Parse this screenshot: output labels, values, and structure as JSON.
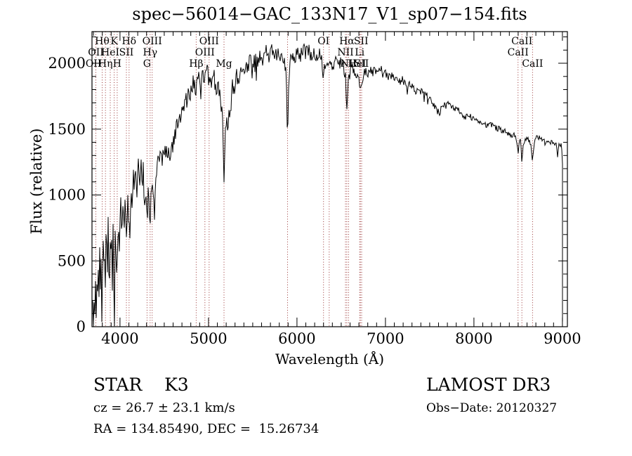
{
  "figure": {
    "title": "spec−56014−GAC_133N17_V1_sp07−154.fits",
    "footer_left": {
      "line1": "STAR    K3",
      "line2": "cz = 26.7 ± 23.1 km/s",
      "line3": "RA = 134.85490, DEC =  15.26734"
    },
    "footer_right": {
      "line1": "LAMOST DR3",
      "line2": "Obs−Date: 20120327"
    }
  },
  "chart_data": {
    "type": "line",
    "title": "spec−56014−GAC_133N17_V1_sp07−154.fits",
    "xlabel": "Wavelength (Å)",
    "ylabel": "Flux (relative)",
    "xlim": [
      3683,
      9056
    ],
    "ylim": [
      0,
      2240
    ],
    "x_ticks": [
      4000,
      5000,
      6000,
      7000,
      8000,
      9000
    ],
    "y_ticks": [
      0,
      500,
      1000,
      1500,
      2000
    ],
    "x_minor_step": 100,
    "y_minor_step": 100,
    "grid": false,
    "legend": "none",
    "line_color": "#000000",
    "series_name": "observed flux",
    "envelope_points": [
      [
        3690,
        20
      ],
      [
        3697,
        180
      ],
      [
        3703,
        60
      ],
      [
        3710,
        340
      ],
      [
        3716,
        90
      ],
      [
        3723,
        420
      ],
      [
        3730,
        150
      ],
      [
        3738,
        470
      ],
      [
        3745,
        220
      ],
      [
        3752,
        520
      ],
      [
        3760,
        180
      ],
      [
        3770,
        560
      ],
      [
        3780,
        300
      ],
      [
        3790,
        620
      ],
      [
        3798,
        260
      ],
      [
        3808,
        660
      ],
      [
        3818,
        380
      ],
      [
        3828,
        700
      ],
      [
        3835,
        280
      ],
      [
        3845,
        720
      ],
      [
        3855,
        480
      ],
      [
        3865,
        750
      ],
      [
        3875,
        420
      ],
      [
        3889,
        600
      ],
      [
        3900,
        780
      ],
      [
        3910,
        520
      ],
      [
        3920,
        820
      ],
      [
        3934,
        300
      ],
      [
        3945,
        760
      ],
      [
        3957,
        560
      ],
      [
        3968,
        420
      ],
      [
        3980,
        860
      ],
      [
        3992,
        640
      ],
      [
        4005,
        920
      ],
      [
        4018,
        720
      ],
      [
        4030,
        980
      ],
      [
        4045,
        800
      ],
      [
        4060,
        1020
      ],
      [
        4072,
        700
      ],
      [
        4085,
        1040
      ],
      [
        4102,
        760
      ],
      [
        4115,
        1080
      ],
      [
        4130,
        920
      ],
      [
        4145,
        1150
      ],
      [
        4160,
        1020
      ],
      [
        4175,
        1180
      ],
      [
        4190,
        1080
      ],
      [
        4205,
        1250
      ],
      [
        4220,
        1120
      ],
      [
        4235,
        1220
      ],
      [
        4250,
        1080
      ],
      [
        4265,
        1150
      ],
      [
        4280,
        980
      ],
      [
        4295,
        1060
      ],
      [
        4305,
        900
      ],
      [
        4320,
        1040
      ],
      [
        4340,
        880
      ],
      [
        4355,
        1000
      ],
      [
        4363,
        950
      ],
      [
        4378,
        1050
      ],
      [
        4395,
        1120
      ],
      [
        4412,
        1180
      ],
      [
        4430,
        1240
      ],
      [
        4450,
        1270
      ],
      [
        4470,
        1280
      ],
      [
        4510,
        1320
      ],
      [
        4555,
        1290
      ],
      [
        4580,
        1350
      ],
      [
        4605,
        1420
      ],
      [
        4630,
        1480
      ],
      [
        4655,
        1530
      ],
      [
        4680,
        1580
      ],
      [
        4705,
        1650
      ],
      [
        4730,
        1700
      ],
      [
        4755,
        1730
      ],
      [
        4780,
        1760
      ],
      [
        4805,
        1800
      ],
      [
        4830,
        1840
      ],
      [
        4861,
        1780
      ],
      [
        4880,
        1880
      ],
      [
        4900,
        1850
      ],
      [
        4920,
        1900
      ],
      [
        4940,
        1870
      ],
      [
        4959,
        1850
      ],
      [
        4980,
        1930
      ],
      [
        5007,
        1870
      ],
      [
        5025,
        1900
      ],
      [
        5045,
        1850
      ],
      [
        5065,
        1880
      ],
      [
        5085,
        1820
      ],
      [
        5105,
        1860
      ],
      [
        5125,
        1780
      ],
      [
        5145,
        1700
      ],
      [
        5160,
        1480
      ],
      [
        5175,
        1080
      ],
      [
        5185,
        1380
      ],
      [
        5200,
        1620
      ],
      [
        5215,
        1420
      ],
      [
        5230,
        1700
      ],
      [
        5250,
        1560
      ],
      [
        5270,
        1820
      ],
      [
        5290,
        1780
      ],
      [
        5310,
        1900
      ],
      [
        5335,
        1850
      ],
      [
        5360,
        1960
      ],
      [
        5385,
        1900
      ],
      [
        5410,
        1990
      ],
      [
        5440,
        1940
      ],
      [
        5470,
        2030
      ],
      [
        5500,
        1970
      ],
      [
        5530,
        2050
      ],
      [
        5560,
        2000
      ],
      [
        5590,
        2070
      ],
      [
        5620,
        2020
      ],
      [
        5650,
        2090
      ],
      [
        5680,
        2040
      ],
      [
        5710,
        2110
      ],
      [
        5740,
        2060
      ],
      [
        5770,
        2100
      ],
      [
        5800,
        2050
      ],
      [
        5830,
        2080
      ],
      [
        5860,
        2020
      ],
      [
        5880,
        1900
      ],
      [
        5893,
        1300
      ],
      [
        5905,
        1850
      ],
      [
        5920,
        2030
      ],
      [
        5950,
        2080
      ],
      [
        5980,
        2030
      ],
      [
        6010,
        2100
      ],
      [
        6040,
        2060
      ],
      [
        6070,
        2110
      ],
      [
        6100,
        2070
      ],
      [
        6130,
        2100
      ],
      [
        6160,
        2050
      ],
      [
        6190,
        2080
      ],
      [
        6220,
        2040
      ],
      [
        6250,
        2070
      ],
      [
        6280,
        2010
      ],
      [
        6300,
        1900
      ],
      [
        6320,
        2020
      ],
      [
        6345,
        1980
      ],
      [
        6364,
        1950
      ],
      [
        6385,
        2020
      ],
      [
        6410,
        1980
      ],
      [
        6440,
        2030
      ],
      [
        6470,
        1980
      ],
      [
        6500,
        2020
      ],
      [
        6530,
        1970
      ],
      [
        6548,
        1900
      ],
      [
        6563,
        1650
      ],
      [
        6578,
        1870
      ],
      [
        6595,
        1950
      ],
      [
        6620,
        1980
      ],
      [
        6650,
        1940
      ],
      [
        6678,
        1890
      ],
      [
        6700,
        1860
      ],
      [
        6716,
        1800
      ],
      [
        6731,
        1820
      ],
      [
        6750,
        1910
      ],
      [
        6775,
        1950
      ],
      [
        6800,
        1920
      ],
      [
        6830,
        1950
      ],
      [
        6860,
        1930
      ],
      [
        6890,
        1950
      ],
      [
        6920,
        1960
      ],
      [
        6950,
        1970
      ],
      [
        6980,
        1940
      ],
      [
        7010,
        1910
      ],
      [
        7040,
        1890
      ],
      [
        7070,
        1910
      ],
      [
        7100,
        1880
      ],
      [
        7130,
        1900
      ],
      [
        7160,
        1860
      ],
      [
        7190,
        1880
      ],
      [
        7220,
        1850
      ],
      [
        7250,
        1830
      ],
      [
        7280,
        1840
      ],
      [
        7310,
        1810
      ],
      [
        7340,
        1790
      ],
      [
        7370,
        1800
      ],
      [
        7400,
        1780
      ],
      [
        7430,
        1790
      ],
      [
        7460,
        1760
      ],
      [
        7490,
        1740
      ],
      [
        7520,
        1710
      ],
      [
        7550,
        1680
      ],
      [
        7580,
        1640
      ],
      [
        7605,
        1620
      ],
      [
        7630,
        1660
      ],
      [
        7660,
        1690
      ],
      [
        7690,
        1680
      ],
      [
        7720,
        1695
      ],
      [
        7750,
        1675
      ],
      [
        7780,
        1655
      ],
      [
        7810,
        1645
      ],
      [
        7840,
        1635
      ],
      [
        7870,
        1610
      ],
      [
        7900,
        1590
      ],
      [
        7930,
        1605
      ],
      [
        7960,
        1595
      ],
      [
        7990,
        1575
      ],
      [
        8020,
        1560
      ],
      [
        8050,
        1550
      ],
      [
        8080,
        1558
      ],
      [
        8110,
        1540
      ],
      [
        8140,
        1530
      ],
      [
        8170,
        1542
      ],
      [
        8200,
        1535
      ],
      [
        8230,
        1520
      ],
      [
        8260,
        1508
      ],
      [
        8290,
        1498
      ],
      [
        8320,
        1488
      ],
      [
        8350,
        1478
      ],
      [
        8380,
        1470
      ],
      [
        8410,
        1463
      ],
      [
        8440,
        1456
      ],
      [
        8470,
        1440
      ],
      [
        8498,
        1360
      ],
      [
        8515,
        1430
      ],
      [
        8530,
        1408
      ],
      [
        8542,
        1250
      ],
      [
        8558,
        1398
      ],
      [
        8575,
        1428
      ],
      [
        8600,
        1438
      ],
      [
        8620,
        1418
      ],
      [
        8640,
        1398
      ],
      [
        8662,
        1250
      ],
      [
        8680,
        1398
      ],
      [
        8700,
        1428
      ],
      [
        8725,
        1438
      ],
      [
        8750,
        1418
      ],
      [
        8775,
        1428
      ],
      [
        8800,
        1398
      ],
      [
        8825,
        1412
      ],
      [
        8850,
        1388
      ],
      [
        8875,
        1402
      ],
      [
        8900,
        1382
      ],
      [
        8925,
        1392
      ],
      [
        8945,
        1300
      ],
      [
        8960,
        1398
      ],
      [
        8975,
        1378
      ],
      [
        8990,
        1368
      ],
      [
        9000,
        1358
      ],
      [
        9004,
        40
      ]
    ],
    "noise_segments": [
      [
        3683,
        3960,
        185
      ],
      [
        3960,
        4400,
        125
      ],
      [
        4400,
        5140,
        75
      ],
      [
        5140,
        5320,
        95
      ],
      [
        5320,
        6550,
        52
      ],
      [
        6550,
        7050,
        36
      ],
      [
        7050,
        7700,
        28
      ],
      [
        7700,
        9010,
        24
      ]
    ],
    "noise_seed": 20120327,
    "spectral_lines": {
      "color": "#993333",
      "markers": [
        3727,
        3798,
        3835,
        3889,
        3934,
        3968,
        4072,
        4102,
        4305,
        4340,
        4363,
        4861,
        4959,
        5007,
        5175,
        5893,
        6300,
        6364,
        6548,
        6563,
        6583,
        6708,
        6716,
        6731,
        8498,
        8542,
        8662
      ],
      "labels": [
        {
          "text": "Hθ",
          "wavelength": 3798,
          "row": 1
        },
        {
          "text": "K",
          "wavelength": 3934,
          "row": 1
        },
        {
          "text": "Hδ",
          "wavelength": 4102,
          "row": 1
        },
        {
          "text": "OIII",
          "wavelength": 4363,
          "row": 1
        },
        {
          "text": "OIII",
          "wavelength": 5007,
          "row": 1
        },
        {
          "text": "OI",
          "wavelength": 6300,
          "row": 1
        },
        {
          "text": "Hα",
          "wavelength": 6563,
          "row": 1
        },
        {
          "text": "SII",
          "wavelength": 6724,
          "row": 1
        },
        {
          "text": "CaII",
          "wavelength": 8542,
          "row": 1
        },
        {
          "text": "OII",
          "wavelength": 3727,
          "row": 2
        },
        {
          "text": "HeI",
          "wavelength": 3889,
          "row": 2
        },
        {
          "text": "SII",
          "wavelength": 4072,
          "row": 2
        },
        {
          "text": "Hγ",
          "wavelength": 4340,
          "row": 2
        },
        {
          "text": "OIII",
          "wavelength": 4959,
          "row": 2
        },
        {
          "text": "NII",
          "wavelength": 6548,
          "row": 2
        },
        {
          "text": "Li",
          "wavelength": 6708,
          "row": 2
        },
        {
          "text": "CaII",
          "wavelength": 8498,
          "row": 2
        },
        {
          "text": "OII",
          "wavelength": 3700,
          "row": 3
        },
        {
          "text": "Hη",
          "wavelength": 3835,
          "row": 3
        },
        {
          "text": "H",
          "wavelength": 3968,
          "row": 3
        },
        {
          "text": "G",
          "wavelength": 4305,
          "row": 3
        },
        {
          "text": "Hβ",
          "wavelength": 4861,
          "row": 3
        },
        {
          "text": "Mg",
          "wavelength": 5175,
          "row": 3
        },
        {
          "text": "NII",
          "wavelength": 6583,
          "row": 3
        },
        {
          "text": "HeI",
          "wavelength": 6678,
          "row": 3
        },
        {
          "text": "SII",
          "wavelength": 6731,
          "row": 3
        },
        {
          "text": "CaII",
          "wavelength": 8662,
          "row": 3
        }
      ]
    }
  }
}
